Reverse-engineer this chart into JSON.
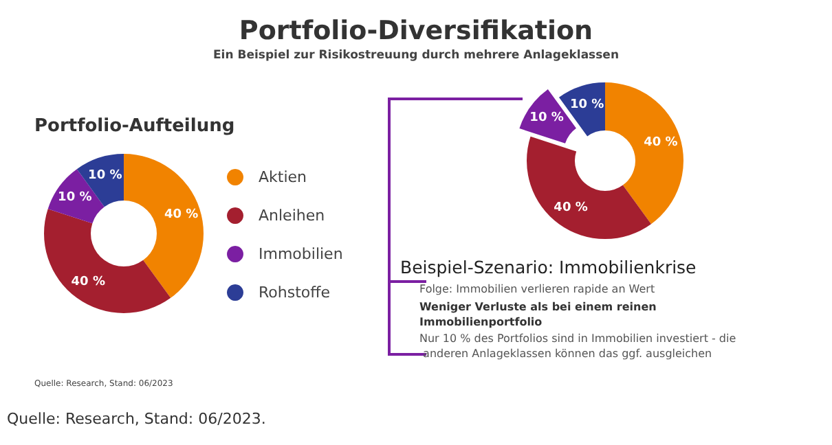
{
  "chart_data": [
    {
      "type": "donut",
      "title": "Portfolio-Diversifikation",
      "subtitle": "Ein Beispiel zur Risikostreuung durch mehrere Anlageklassen",
      "categories": [
        "Aktien",
        "Anleihen",
        "Immobilien",
        "Rohstoffe"
      ],
      "values": [
        40,
        40,
        10,
        10
      ],
      "colors": [
        "#f18300",
        "#a41f2f",
        "#7b1fa2",
        "#2c3d96"
      ],
      "value_labels": [
        "40 %",
        "40 %",
        "10 %",
        "10 %"
      ],
      "legend": "right",
      "annotations": [
        "Portfolio-Aufteilung",
        "Quelle: Research, Stand: 06/2023",
        "Quelle: Research, Stand: 06/2023."
      ]
    },
    {
      "type": "donut",
      "title": "Beispiel-Szenario: Immobilienkrise",
      "categories": [
        null,
        null,
        null,
        null
      ],
      "values": [
        40,
        40,
        10,
        10
      ],
      "colors": [
        "#f18300",
        "#a41f2f",
        "#7b1fa2",
        "#2c3d96"
      ],
      "value_labels": [
        "40 %",
        "40 %",
        "10 %",
        "10 %"
      ],
      "legend": false,
      "annotations": [
        "Folge: Immobilien verlieren rapide an Wert",
        "Weniger Verluste als bei einem reinen Immobilienportfolio",
        "Nur 10 % des Portfolios sind in Immobilien investiert - die anderen Anlageklassen können das ggf. ausgleichen"
      ]
    }
  ]
}
